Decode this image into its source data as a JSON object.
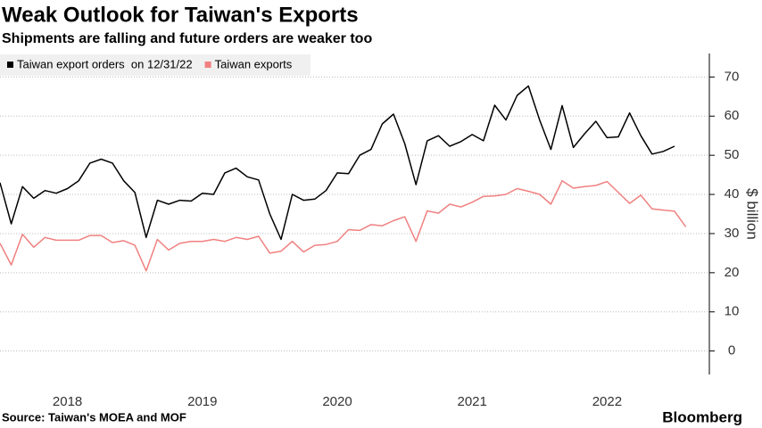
{
  "chart_data": {
    "type": "line",
    "title": "Weak Outlook for Taiwan's Exports",
    "subtitle": "Shipments are falling and future orders are weaker too",
    "y_label": "$ billion",
    "source": "Source: Taiwan's MOEA and MOF",
    "brand": "Bloomberg",
    "categories": [
      null,
      null,
      null,
      null,
      null,
      null,
      "2018",
      null,
      null,
      null,
      null,
      null,
      null,
      null,
      null,
      null,
      null,
      null,
      "2019",
      null,
      null,
      null,
      null,
      null,
      null,
      null,
      null,
      null,
      null,
      null,
      "2020",
      null,
      null,
      null,
      null,
      null,
      null,
      null,
      null,
      null,
      null,
      null,
      "2021",
      null,
      null,
      null,
      null,
      null,
      null,
      null,
      null,
      null,
      null,
      null,
      "2022",
      null,
      null,
      null,
      null,
      null,
      null,
      null
    ],
    "series": [
      {
        "name": "Taiwan export orders  on 12/31/22",
        "color": "#000000",
        "values": [
          43,
          32.5,
          42,
          39,
          41,
          40.3,
          41.5,
          43.5,
          48,
          49,
          48,
          43.5,
          40.5,
          29,
          38.5,
          37.5,
          38.5,
          38.3,
          40.3,
          40,
          45.5,
          46.7,
          44.5,
          43.7,
          35,
          28.5,
          40,
          38.5,
          38.8,
          41,
          45.5,
          45.3,
          50,
          51.5,
          58,
          60.5,
          53,
          42.5,
          53.7,
          55,
          52.3,
          53.5,
          55.3,
          53.7,
          62.8,
          59,
          65.3,
          67.7,
          59,
          51.5,
          62.7,
          52,
          55.5,
          58.7,
          54.5,
          54.7,
          60.8,
          55,
          50.3,
          51,
          52.3,
          null
        ]
      },
      {
        "name": "Taiwan exports",
        "color": "#f08080",
        "values": [
          27.5,
          22,
          29.8,
          26.5,
          29,
          28.3,
          28.3,
          28.3,
          29.5,
          29.5,
          27.7,
          28.2,
          27,
          20.5,
          28.5,
          25.8,
          27.5,
          28,
          28,
          28.5,
          28,
          29,
          28.5,
          29.3,
          25,
          25.5,
          28,
          25.3,
          27,
          27.2,
          28,
          31,
          30.8,
          32.3,
          32,
          33.3,
          34.3,
          28,
          35.8,
          35.2,
          37.5,
          36.8,
          38,
          39.5,
          39.6,
          40,
          41.5,
          40.8,
          40,
          37.5,
          43.5,
          41.6,
          42,
          42.3,
          43.3,
          40.5,
          37.7,
          39.8,
          36.3,
          36,
          35.7,
          31.7
        ]
      }
    ],
    "ylim": [
      -6,
      76
    ],
    "yticks": [
      0,
      10,
      20,
      30,
      40,
      50,
      60,
      70
    ],
    "grid": true,
    "legend": "top-left"
  }
}
